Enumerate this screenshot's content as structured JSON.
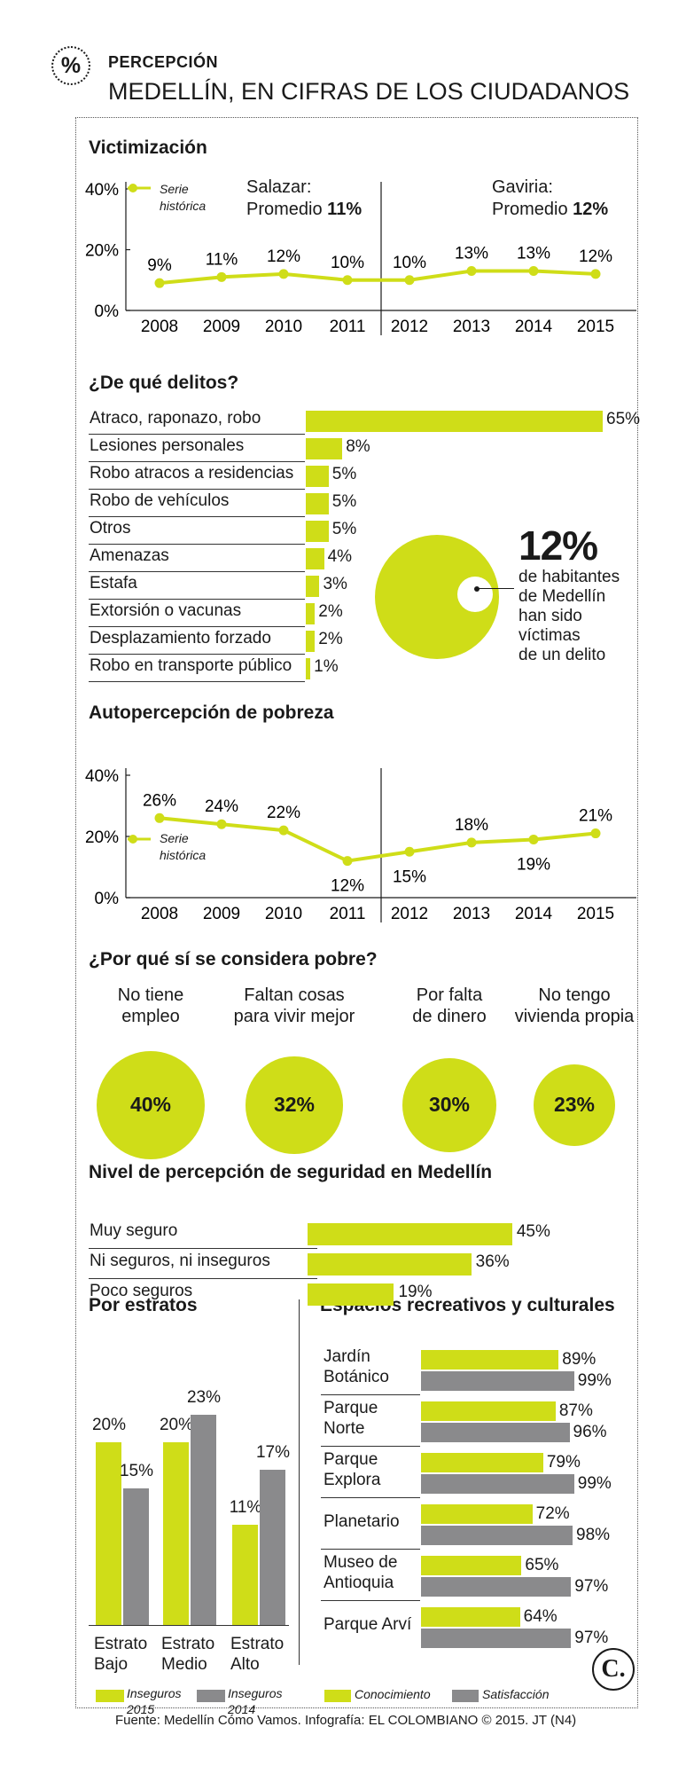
{
  "header": {
    "icon_symbol": "%",
    "kicker": "PERCEPCIÓN",
    "title": "MEDELLÍN, EN CIFRAS DE LOS CIUDADANOS"
  },
  "colors": {
    "accent": "#cfdd18",
    "gray": "#8a8a8c",
    "text": "#1a1a1a"
  },
  "victimizacion": {
    "title": "Victimización",
    "legend": [
      "Serie",
      "histórica"
    ],
    "salazar": {
      "label": "Salazar:",
      "avg_label": "Promedio",
      "avg_value": "11%"
    },
    "gaviria": {
      "label": "Gaviria:",
      "avg_label": "Promedio",
      "avg_value": "12%"
    },
    "chart_data": {
      "type": "line",
      "title": "Victimización",
      "x": [
        "2008",
        "2009",
        "2010",
        "2011",
        "2012",
        "2013",
        "2014",
        "2015"
      ],
      "values": [
        9,
        11,
        12,
        10,
        10,
        13,
        13,
        12
      ],
      "labels": [
        "9%",
        "11%",
        "12%",
        "10%",
        "10%",
        "13%",
        "13%",
        "12%"
      ],
      "yticks": [
        "0%",
        "20%",
        "40%"
      ],
      "ylim": [
        0,
        40
      ]
    }
  },
  "delitos": {
    "title": "¿De qué delitos?",
    "chart_data": {
      "type": "bar",
      "categories": [
        "Atraco, raponazo, robo",
        "Lesiones personales",
        "Robo atracos a residencias",
        "Robo de vehículos",
        "Otros",
        "Amenazas",
        "Estafa",
        "Extorsión o vacunas",
        "Desplazamiento forzado",
        "Robo en  transporte público"
      ],
      "values": [
        65,
        8,
        5,
        5,
        5,
        4,
        3,
        2,
        2,
        1
      ],
      "labels": [
        "65%",
        "8%",
        "5%",
        "5%",
        "5%",
        "4%",
        "3%",
        "2%",
        "2%",
        "1%"
      ]
    },
    "victims": {
      "value": 12,
      "big_label": "12%",
      "lines": [
        "de habitantes",
        "de Medellín",
        "han sido",
        "víctimas",
        "de un delito"
      ]
    }
  },
  "pobreza": {
    "title": "Autopercepción de pobreza",
    "legend": [
      "Serie",
      "histórica"
    ],
    "chart_data": {
      "type": "line",
      "title": "Autopercepción de pobreza",
      "x": [
        "2008",
        "2009",
        "2010",
        "2011",
        "2012",
        "2013",
        "2014",
        "2015"
      ],
      "values": [
        26,
        24,
        22,
        12,
        15,
        18,
        19,
        21
      ],
      "labels": [
        "26%",
        "24%",
        "22%",
        "12%",
        "15%",
        "18%",
        "19%",
        "21%"
      ],
      "yticks": [
        "0%",
        "20%",
        "40%"
      ],
      "ylim": [
        0,
        40
      ]
    }
  },
  "porque": {
    "title": "¿Por qué sí se considera pobre?",
    "items": [
      {
        "line1": "No tiene",
        "line2": "empleo",
        "value": 40,
        "label": "40%"
      },
      {
        "line1": "Faltan cosas",
        "line2": "para vivir mejor",
        "value": 32,
        "label": "32%"
      },
      {
        "line1": "Por falta",
        "line2": "de dinero",
        "value": 30,
        "label": "30%"
      },
      {
        "line1": "No tengo",
        "line2": "vivienda propia",
        "value": 23,
        "label": "23%"
      }
    ]
  },
  "seguridad": {
    "title": "Nivel de percepción de seguridad en Medellín",
    "chart_data": {
      "type": "bar",
      "categories": [
        "Muy seguro",
        "Ni seguros, ni inseguros",
        "Poco seguros"
      ],
      "values": [
        45,
        36,
        19
      ],
      "labels": [
        "45%",
        "36%",
        "19%"
      ]
    }
  },
  "estratos": {
    "title": "Por estratos",
    "chart_data": {
      "type": "bar",
      "categories": [
        [
          "Estrato",
          "Bajo"
        ],
        [
          "Estrato",
          "Medio"
        ],
        [
          "Estrato",
          "Alto"
        ]
      ],
      "series": [
        {
          "name": "Inseguros 2015",
          "values": [
            20,
            20,
            11
          ],
          "labels": [
            "20%",
            "20%",
            "11%"
          ]
        },
        {
          "name": "Inseguros 2014",
          "values": [
            15,
            23,
            17
          ],
          "labels": [
            "15%",
            "23%",
            "17%"
          ]
        }
      ]
    },
    "legend": [
      {
        "line1": "Inseguros",
        "line2": "2015"
      },
      {
        "line1": "Inseguros",
        "line2": "2014"
      }
    ]
  },
  "espacios": {
    "title": "Espacios recreativos y culturales",
    "chart_data": {
      "type": "bar",
      "categories": [
        [
          "Jardín",
          "Botánico"
        ],
        [
          "Parque",
          "Norte"
        ],
        [
          "Parque",
          "Explora"
        ],
        [
          "Planetario"
        ],
        [
          "Museo de",
          "Antioquia"
        ],
        [
          "Parque Arví"
        ]
      ],
      "series": [
        {
          "name": "Conocimiento",
          "values": [
            89,
            87,
            79,
            72,
            65,
            64
          ],
          "labels": [
            "89%",
            "87%",
            "79%",
            "72%",
            "65%",
            "64%"
          ]
        },
        {
          "name": "Satisfacción",
          "values": [
            99,
            96,
            99,
            98,
            97,
            97
          ],
          "labels": [
            "99%",
            "96%",
            "99%",
            "98%",
            "97%",
            "97%"
          ]
        }
      ]
    },
    "legend": [
      "Conocimiento",
      "Satisfacción"
    ]
  },
  "footer": {
    "logo": "C.",
    "source": "Fuente: Medellín Cómo Vamos. Infografía: EL COLOMBIANO © 2015. JT (N4)"
  }
}
